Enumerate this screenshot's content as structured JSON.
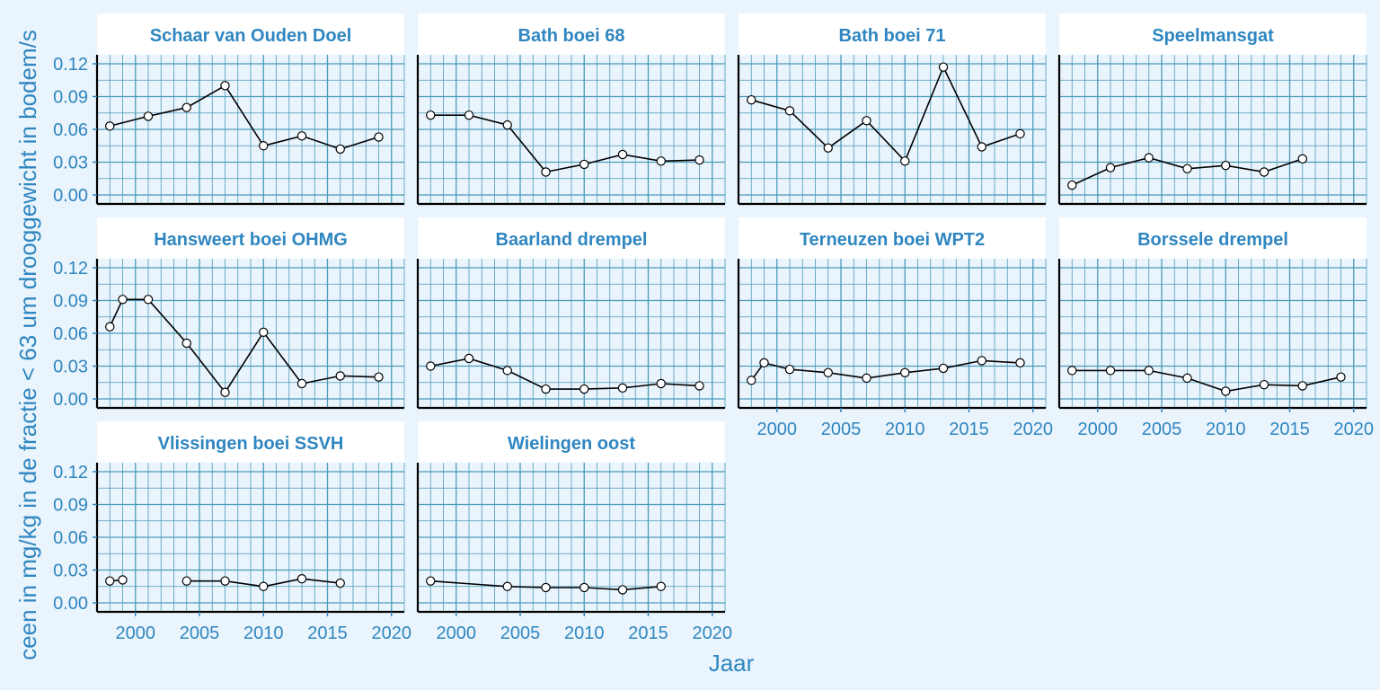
{
  "chart_data": {
    "type": "line",
    "xlabel": "Jaar",
    "ylabel": "ceen in mg/kg in de fractie < 63 um drooggewicht in bodem/s",
    "ylim": [
      0,
      0.12
    ],
    "yticks": [
      "0.00",
      "0.03",
      "0.06",
      "0.09",
      "0.12"
    ],
    "xlim": [
      1997,
      2021
    ],
    "xticks": [
      "2000",
      "2005",
      "2010",
      "2015",
      "2020"
    ],
    "grid": true,
    "layout": "facets 4 columns x 3 rows",
    "panels": [
      {
        "name": "Schaar van Ouden Doel",
        "x": [
          1998,
          2001,
          2004,
          2007,
          2010,
          2013,
          2016,
          2019
        ],
        "values": [
          0.063,
          0.072,
          0.08,
          0.1,
          0.045,
          0.054,
          0.042,
          0.053
        ]
      },
      {
        "name": "Bath boei 68",
        "x": [
          1998,
          2001,
          2004,
          2007,
          2010,
          2013,
          2016,
          2019
        ],
        "values": [
          0.073,
          0.073,
          0.064,
          0.021,
          0.028,
          0.037,
          0.031,
          0.032
        ]
      },
      {
        "name": "Bath boei 71",
        "x": [
          1998,
          2001,
          2004,
          2007,
          2010,
          2013,
          2016,
          2019
        ],
        "values": [
          0.087,
          0.077,
          0.043,
          0.068,
          0.031,
          0.117,
          0.044,
          0.056
        ]
      },
      {
        "name": "Speelmansgat",
        "x": [
          1998,
          2001,
          2004,
          2007,
          2010,
          2013,
          2016
        ],
        "values": [
          0.009,
          0.025,
          0.034,
          0.024,
          0.027,
          0.021,
          0.033
        ]
      },
      {
        "name": "Hansweert boei OHMG",
        "x": [
          1998,
          1999,
          2001,
          2004,
          2007,
          2010,
          2013,
          2016,
          2019
        ],
        "values": [
          0.066,
          0.091,
          0.091,
          0.051,
          0.006,
          0.061,
          0.014,
          0.021,
          0.02
        ]
      },
      {
        "name": "Baarland drempel",
        "x": [
          1998,
          2001,
          2004,
          2007,
          2010,
          2013,
          2016,
          2019
        ],
        "values": [
          0.03,
          0.037,
          0.026,
          0.009,
          0.009,
          0.01,
          0.014,
          0.012
        ]
      },
      {
        "name": "Terneuzen boei WPT2",
        "x": [
          1998,
          1999,
          2001,
          2004,
          2007,
          2010,
          2013,
          2016,
          2019
        ],
        "values": [
          0.017,
          0.033,
          0.027,
          0.024,
          0.019,
          0.024,
          0.028,
          0.035,
          0.033
        ]
      },
      {
        "name": "Borssele drempel",
        "x": [
          1998,
          2001,
          2004,
          2007,
          2010,
          2013,
          2016,
          2019
        ],
        "values": [
          0.026,
          0.026,
          0.026,
          0.019,
          0.007,
          0.013,
          0.012,
          0.02
        ]
      },
      {
        "name": "Vlissingen boei SSVH",
        "segments": [
          {
            "x": [
              1998,
              1999
            ],
            "values": [
              0.02,
              0.021
            ]
          },
          {
            "x": [
              2004,
              2007,
              2010,
              2013,
              2016
            ],
            "values": [
              0.02,
              0.02,
              0.015,
              0.022,
              0.018
            ]
          }
        ]
      },
      {
        "name": "Wielingen oost",
        "x": [
          1998,
          2004,
          2007,
          2010,
          2013,
          2016
        ],
        "values": [
          0.02,
          0.015,
          0.014,
          0.014,
          0.012,
          0.015
        ]
      }
    ]
  }
}
